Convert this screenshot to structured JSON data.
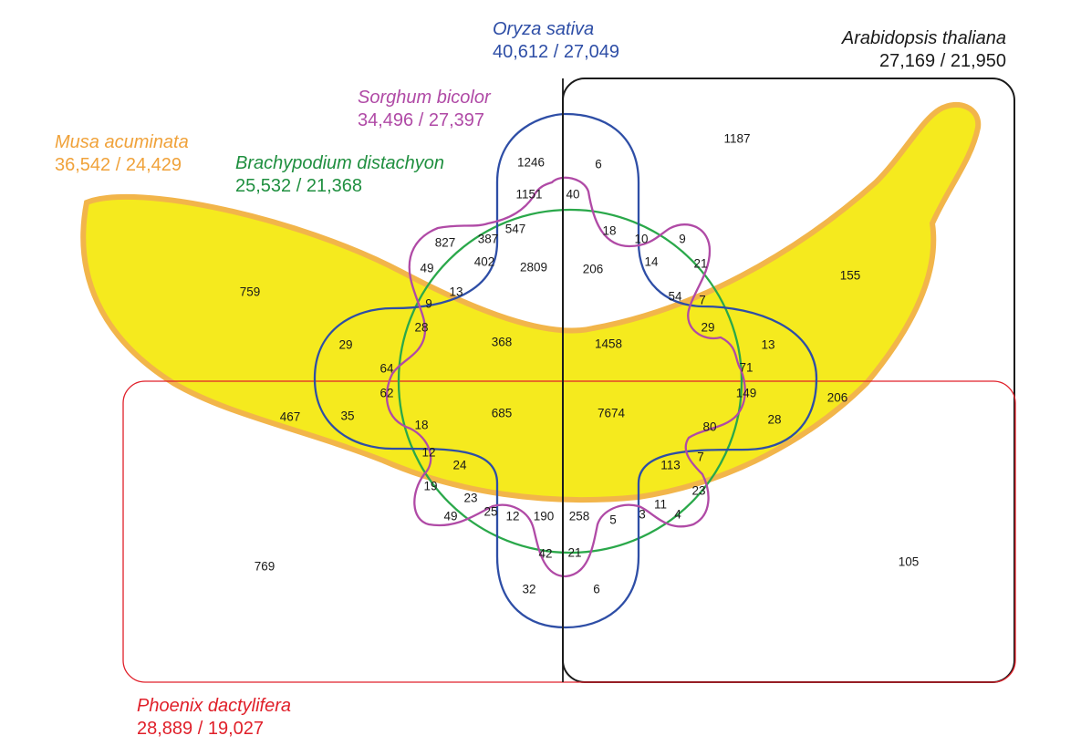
{
  "species": {
    "musa": {
      "name": "Musa acuminata",
      "counts": "36,542 / 24,429",
      "color": "#f0a23a",
      "fill": "#f5ea1e"
    },
    "oryza": {
      "name": "Oryza sativa",
      "counts": "40,612 / 27,049",
      "color": "#2e4ea6"
    },
    "arabidopsis": {
      "name": "Arabidopsis thaliana",
      "counts": "27,169 / 21,950",
      "color": "#1a1a1a"
    },
    "sorghum": {
      "name": "Sorghum bicolor",
      "counts": "34,496 / 27,397",
      "color": "#b04aa6"
    },
    "brachypodium": {
      "name": "Brachypodium distachyon",
      "counts": "25,532 / 21,368",
      "color": "#1f8f3f"
    },
    "phoenix": {
      "name": "Phoenix dactylifera",
      "counts": "28,889 / 19,027",
      "color": "#e0202a"
    }
  },
  "region_values": [
    "1246",
    "6",
    "1187",
    "1151",
    "40",
    "827",
    "387",
    "547",
    "18",
    "10",
    "9",
    "49",
    "402",
    "2809",
    "206",
    "14",
    "21",
    "759",
    "155",
    "13",
    "54",
    "7",
    "9",
    "28",
    "29",
    "368",
    "1458",
    "29",
    "13",
    "64",
    "71",
    "62",
    "149",
    "206",
    "467",
    "35",
    "685",
    "7674",
    "28",
    "18",
    "80",
    "12",
    "24",
    "113",
    "7",
    "19",
    "23",
    "23",
    "49",
    "25",
    "12",
    "190",
    "258",
    "5",
    "3",
    "11",
    "4",
    "42",
    "21",
    "769",
    "105",
    "32",
    "6"
  ]
}
